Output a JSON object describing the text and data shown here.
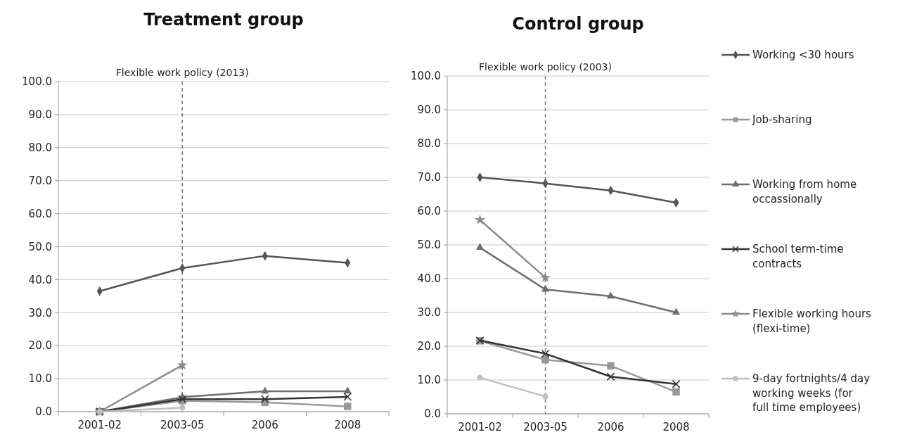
{
  "chart_data": [
    {
      "type": "line",
      "title": "Treatment group",
      "categories": [
        "2001-02",
        "2003-05",
        "2006",
        "2008"
      ],
      "ylim": [
        0,
        100
      ],
      "yticks": [
        {
          "value": 0,
          "label": "0.0"
        },
        {
          "value": 10,
          "label": "10.0"
        },
        {
          "value": 20,
          "label": "20.0"
        },
        {
          "value": 30,
          "label": "30.0"
        },
        {
          "value": 40,
          "label": "40.0"
        },
        {
          "value": 50,
          "label": "50.0"
        },
        {
          "value": 60,
          "label": "60.0"
        },
        {
          "value": 70,
          "label": "70.0"
        },
        {
          "value": 80,
          "label": "80.0"
        },
        {
          "value": 90,
          "label": "90.0"
        },
        {
          "value": 100,
          "label": "100.0"
        }
      ],
      "grid": "y",
      "legend": false,
      "line_style": "solid",
      "ref_lines": [
        {
          "axis": "x",
          "value": "2003-05",
          "label": "Flexible work policy (2013)",
          "line_style": "dashed",
          "color": "#777777"
        }
      ],
      "series": [
        {
          "color": "#555555",
          "marker": "diamond",
          "values": [
            36.5,
            43.5,
            47.2,
            45.1
          ]
        },
        {
          "color": "#999999",
          "marker": "square",
          "values": [
            0,
            3.3,
            2.8,
            1.6
          ]
        },
        {
          "color": "#6e6e6e",
          "marker": "triangle",
          "values": [
            0,
            4.4,
            6.2,
            6.2
          ]
        },
        {
          "color": "#333333",
          "marker": "cross",
          "values": [
            0,
            3.8,
            3.8,
            4.5
          ]
        },
        {
          "color": "#8c8c8c",
          "marker": "star",
          "values": [
            0,
            14.1,
            null,
            null
          ]
        },
        {
          "color": "#c0c0c0",
          "marker": "circle",
          "values": [
            0,
            1.2,
            null,
            null
          ]
        }
      ]
    },
    {
      "type": "line",
      "title": "Control group",
      "categories": [
        "2001-02",
        "2003-05",
        "2006",
        "2008"
      ],
      "ylim": [
        0,
        100
      ],
      "yticks": [
        {
          "value": 0,
          "label": "0.0"
        },
        {
          "value": 10,
          "label": "10.0"
        },
        {
          "value": 20,
          "label": "20.0"
        },
        {
          "value": 30,
          "label": "30.0"
        },
        {
          "value": 40,
          "label": "40.0"
        },
        {
          "value": 50,
          "label": "50.0"
        },
        {
          "value": 60,
          "label": "60.0"
        },
        {
          "value": 70,
          "label": "70.0"
        },
        {
          "value": 80,
          "label": "80.0"
        },
        {
          "value": 90,
          "label": "90.0"
        },
        {
          "value": 100,
          "label": "100.0"
        }
      ],
      "grid": "y",
      "legend": "right",
      "line_style": "solid",
      "ref_lines": [
        {
          "axis": "x",
          "value": "2003-05",
          "label": "Flexible work policy (2003)",
          "line_style": "dashed",
          "color": "#777777"
        }
      ],
      "series": [
        {
          "name": "Working <30 hours",
          "color": "#555555",
          "marker": "diamond",
          "values": [
            70.0,
            68.2,
            66.1,
            62.5
          ]
        },
        {
          "name": "Job-sharing",
          "color": "#999999",
          "marker": "square",
          "values": [
            21.6,
            16.0,
            14.2,
            6.5
          ]
        },
        {
          "name": "Working from home occassionally",
          "color": "#6e6e6e",
          "marker": "triangle",
          "values": [
            49.2,
            36.8,
            34.8,
            30.0
          ]
        },
        {
          "name": "School term-time contracts",
          "color": "#333333",
          "marker": "cross",
          "values": [
            21.7,
            17.8,
            11.0,
            8.8
          ]
        },
        {
          "name": "Flexible working hours (flexi-time)",
          "color": "#8c8c8c",
          "marker": "star",
          "values": [
            57.4,
            40.3,
            null,
            null
          ]
        },
        {
          "name": "9-day fortnights/4 day working weeks (for full time employees)",
          "color": "#c0c0c0",
          "marker": "circle",
          "values": [
            10.7,
            5.1,
            null,
            null
          ]
        }
      ]
    }
  ]
}
